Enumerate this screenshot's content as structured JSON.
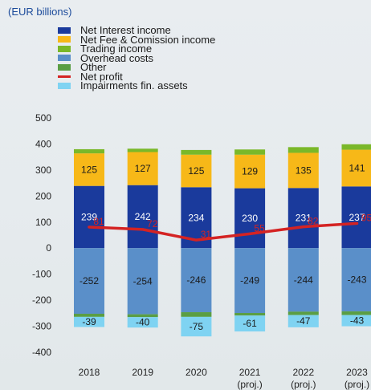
{
  "chart_data": {
    "type": "bar",
    "units_label": "(EUR billions)",
    "categories": [
      {
        "year": "2018",
        "sub": ""
      },
      {
        "year": "2019",
        "sub": ""
      },
      {
        "year": "2020",
        "sub": ""
      },
      {
        "year": "2021",
        "sub": "(proj.)"
      },
      {
        "year": "2022",
        "sub": "(proj.)"
      },
      {
        "year": "2023",
        "sub": "(proj.)"
      }
    ],
    "ylim": [
      -400,
      500
    ],
    "yticks": [
      500,
      400,
      300,
      200,
      100,
      0,
      -100,
      -200,
      -300,
      -400
    ],
    "grid": false,
    "legend_position": "top-left",
    "stacked": true,
    "series": [
      {
        "name": "Net Interest income",
        "color": "#1a3a9c",
        "label_color": "#ffffff",
        "labelled": true,
        "values": [
          239,
          242,
          234,
          230,
          231,
          237
        ]
      },
      {
        "name": "Net Fee & Comission income",
        "color": "#f7b818",
        "label_color": "#1a1a1a",
        "labelled": true,
        "values": [
          125,
          127,
          125,
          129,
          135,
          141
        ]
      },
      {
        "name": "Trading income",
        "color": "#7ab829",
        "label_color": "#1a1a1a",
        "labelled": false,
        "values": [
          16,
          13,
          18,
          20,
          22,
          21
        ]
      },
      {
        "name": "Overhead costs",
        "color": "#5a8fc9",
        "label_color": "#1a1a1a",
        "labelled": true,
        "values": [
          -252,
          -254,
          -246,
          -249,
          -244,
          -243
        ]
      },
      {
        "name": "Other",
        "color": "#5a9e44",
        "label_color": "#1a1a1a",
        "labelled": false,
        "values": [
          -12,
          -11,
          -18,
          -10,
          -13,
          -14
        ]
      },
      {
        "name": "Impairments fin. assets",
        "color": "#7fd3f2",
        "label_color": "#1a1a1a",
        "labelled": true,
        "values": [
          -39,
          -40,
          -75,
          -61,
          -47,
          -43
        ]
      }
    ],
    "line": {
      "name": "Net profit",
      "color": "#d42323",
      "values": [
        81,
        72,
        31,
        55,
        82,
        95
      ]
    },
    "legend_order": [
      {
        "name": "Net Interest income",
        "kind": "box",
        "color": "#1a3a9c"
      },
      {
        "name": "Net Fee & Comission income",
        "kind": "box",
        "color": "#f7b818"
      },
      {
        "name": "Trading income",
        "kind": "box",
        "color": "#7ab829"
      },
      {
        "name": "Overhead costs",
        "kind": "box",
        "color": "#5a8fc9"
      },
      {
        "name": "Other",
        "kind": "box",
        "color": "#5a9e44"
      },
      {
        "name": "Net profit",
        "kind": "line",
        "color": "#d42323"
      },
      {
        "name": "Impairments fin. assets",
        "kind": "box",
        "color": "#7fd3f2"
      }
    ]
  }
}
